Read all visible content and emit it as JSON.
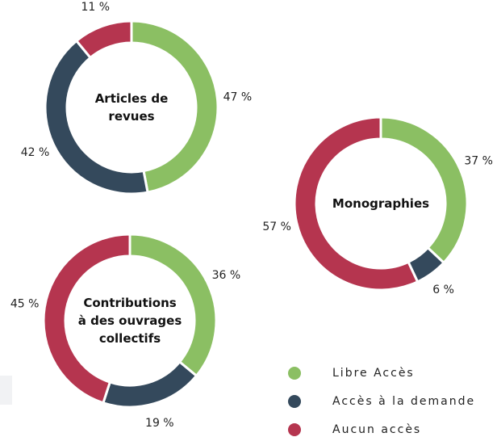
{
  "chart_data": [
    {
      "type": "pie",
      "donut": true,
      "title": "Articles de revues",
      "categories": [
        "Libre Accès",
        "Accès à la demande",
        "Aucun accès"
      ],
      "values": [
        47,
        42,
        11
      ],
      "value_labels": [
        "47 %",
        "42 %",
        "11 %"
      ],
      "colors": [
        "#8bbf63",
        "#34495c",
        "#b5354f"
      ]
    },
    {
      "type": "pie",
      "donut": true,
      "title": "Monographies",
      "categories": [
        "Libre Accès",
        "Accès à la demande",
        "Aucun accès"
      ],
      "values": [
        37,
        6,
        57
      ],
      "value_labels": [
        "37 %",
        "6 %",
        "57 %"
      ],
      "colors": [
        "#8bbf63",
        "#34495c",
        "#b5354f"
      ]
    },
    {
      "type": "pie",
      "donut": true,
      "title": "Contributions à des ouvrages collectifs",
      "categories": [
        "Libre Accès",
        "Accès à la demande",
        "Aucun accès"
      ],
      "values": [
        36,
        19,
        45
      ],
      "value_labels": [
        "36 %",
        "19 %",
        "45 %"
      ],
      "colors": [
        "#8bbf63",
        "#34495c",
        "#b5354f"
      ]
    }
  ]
}
